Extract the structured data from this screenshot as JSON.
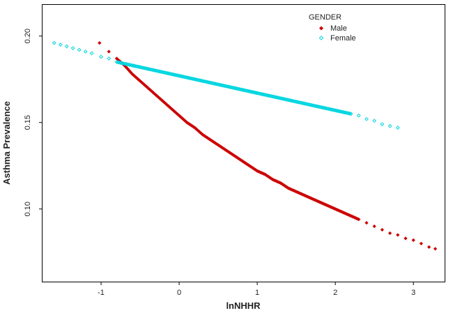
{
  "chart_data": {
    "type": "scatter",
    "title": "",
    "xlabel": "lnNHHR",
    "ylabel": "Asthma Prevalence",
    "xlim": [
      -1.75,
      3.4
    ],
    "ylim": [
      0.058,
      0.218
    ],
    "xticks": [
      "-1",
      "0",
      "1",
      "2",
      "3"
    ],
    "yticks": [
      "0.10",
      "0.15",
      "0.20"
    ],
    "grid": false,
    "legend": {
      "title": "GENDER",
      "position": "top-right"
    },
    "colors": {
      "Male": "#cc0000",
      "Female": "#00d5e0"
    },
    "series": [
      {
        "name": "Male",
        "marker": "filled-diamond",
        "x": [
          -1.02,
          -0.9,
          -0.8,
          -0.7,
          -0.6,
          -0.5,
          -0.4,
          -0.3,
          -0.2,
          -0.1,
          0.0,
          0.1,
          0.2,
          0.3,
          0.4,
          0.5,
          0.6,
          0.7,
          0.8,
          0.9,
          1.0,
          1.1,
          1.2,
          1.3,
          1.4,
          1.5,
          1.6,
          1.7,
          1.8,
          1.9,
          2.0,
          2.1,
          2.2,
          2.3,
          2.4,
          2.5,
          2.6,
          2.7,
          2.8,
          2.9,
          3.0,
          3.1,
          3.2,
          3.28
        ],
        "y": [
          0.196,
          0.191,
          0.187,
          0.183,
          0.178,
          0.174,
          0.17,
          0.166,
          0.162,
          0.158,
          0.154,
          0.15,
          0.147,
          0.143,
          0.14,
          0.137,
          0.134,
          0.131,
          0.128,
          0.125,
          0.122,
          0.12,
          0.117,
          0.115,
          0.112,
          0.11,
          0.108,
          0.106,
          0.104,
          0.102,
          0.1,
          0.098,
          0.096,
          0.094,
          0.092,
          0.09,
          0.088,
          0.086,
          0.085,
          0.083,
          0.082,
          0.08,
          0.078,
          0.077
        ]
      },
      {
        "name": "Female",
        "marker": "open-diamond",
        "x": [
          -1.6,
          -1.28,
          -1.12,
          -1.0,
          -0.9,
          -0.8,
          -0.7,
          -0.6,
          -0.5,
          -0.4,
          -0.3,
          -0.2,
          -0.1,
          0.0,
          0.1,
          0.2,
          0.3,
          0.4,
          0.5,
          0.6,
          0.7,
          0.8,
          0.9,
          1.0,
          1.1,
          1.2,
          1.3,
          1.4,
          1.5,
          1.6,
          1.7,
          1.8,
          1.9,
          2.0,
          2.1,
          2.2,
          2.3,
          2.4,
          2.5,
          2.6,
          2.7,
          2.8
        ],
        "y": [
          0.196,
          0.192,
          0.19,
          0.188,
          0.187,
          0.185,
          0.184,
          0.183,
          0.182,
          0.181,
          0.18,
          0.179,
          0.178,
          0.177,
          0.176,
          0.175,
          0.174,
          0.173,
          0.172,
          0.171,
          0.17,
          0.169,
          0.168,
          0.167,
          0.166,
          0.165,
          0.164,
          0.163,
          0.162,
          0.161,
          0.16,
          0.159,
          0.158,
          0.157,
          0.156,
          0.155,
          0.154,
          0.152,
          0.151,
          0.149,
          0.148,
          0.147
        ]
      }
    ]
  }
}
